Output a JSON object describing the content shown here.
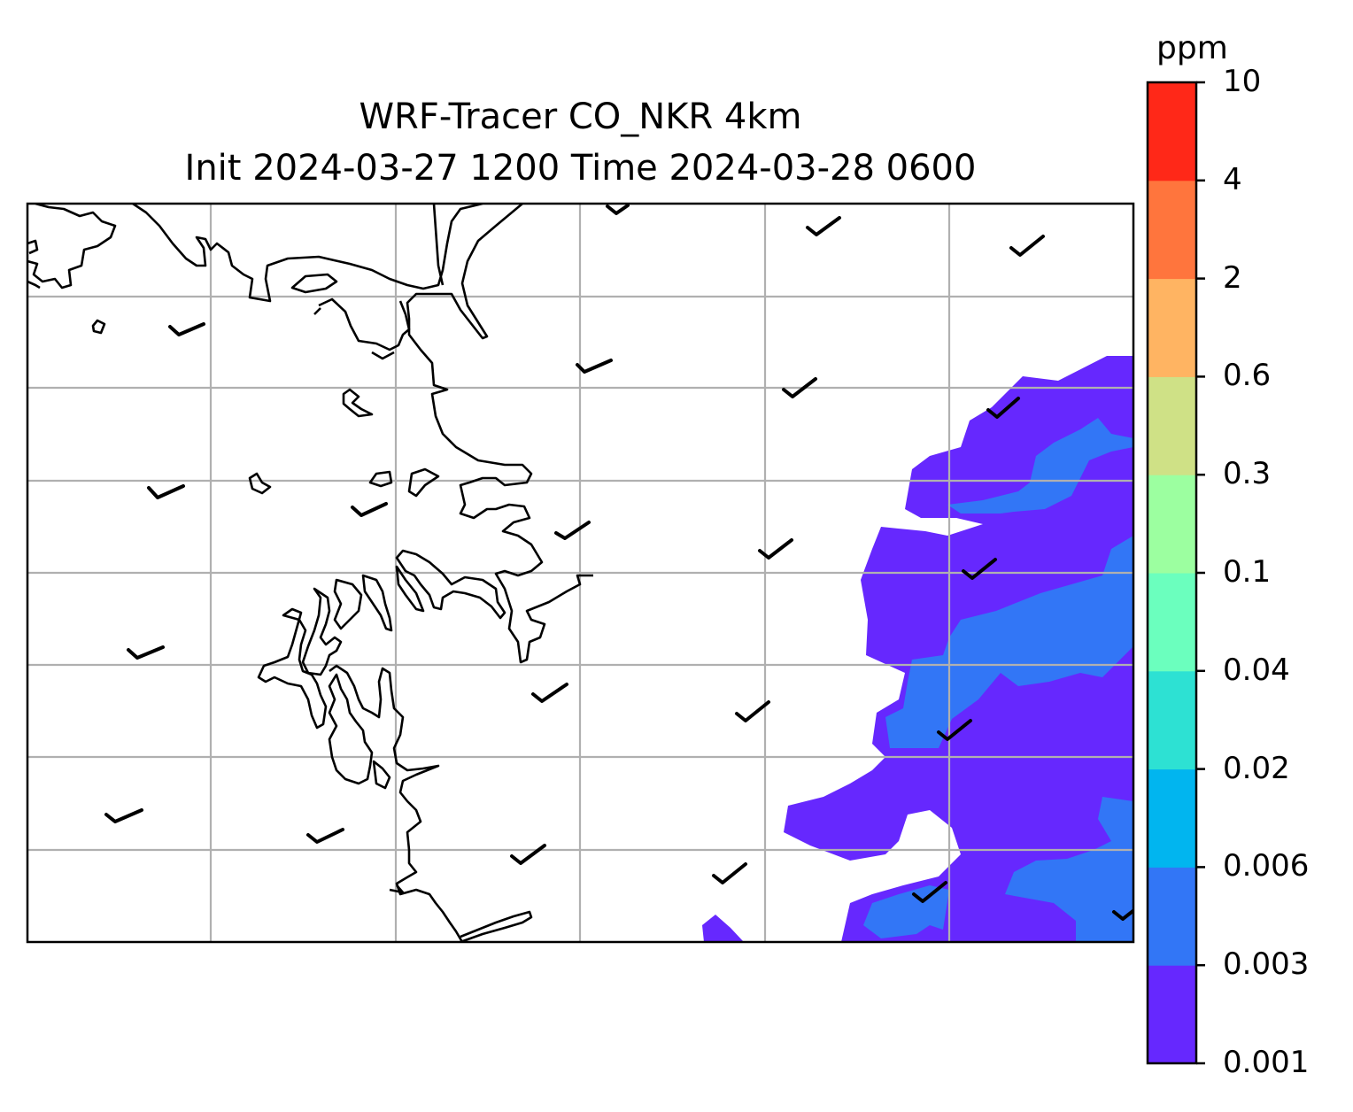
{
  "title": {
    "line1": "WRF-Tracer CO_NKR 4km",
    "line2": "Init 2024-03-27 1200 Time 2024-03-28 0600"
  },
  "colorbar": {
    "unit": "ppm",
    "levels": [
      "0.001",
      "0.003",
      "0.006",
      "0.02",
      "0.04",
      "0.1",
      "0.3",
      "0.6",
      "2",
      "4",
      "10"
    ],
    "colors": [
      "#6628fe",
      "#3276f6",
      "#01b5ef",
      "#2de1d3",
      "#6bffbe",
      "#9cffa0",
      "#cfe186",
      "#ffb462",
      "#ff753d",
      "#ff2818"
    ]
  },
  "map": {
    "coastline_color": "#000000",
    "gridline_color": "#b0b0b0",
    "barb_color": "#000000"
  }
}
